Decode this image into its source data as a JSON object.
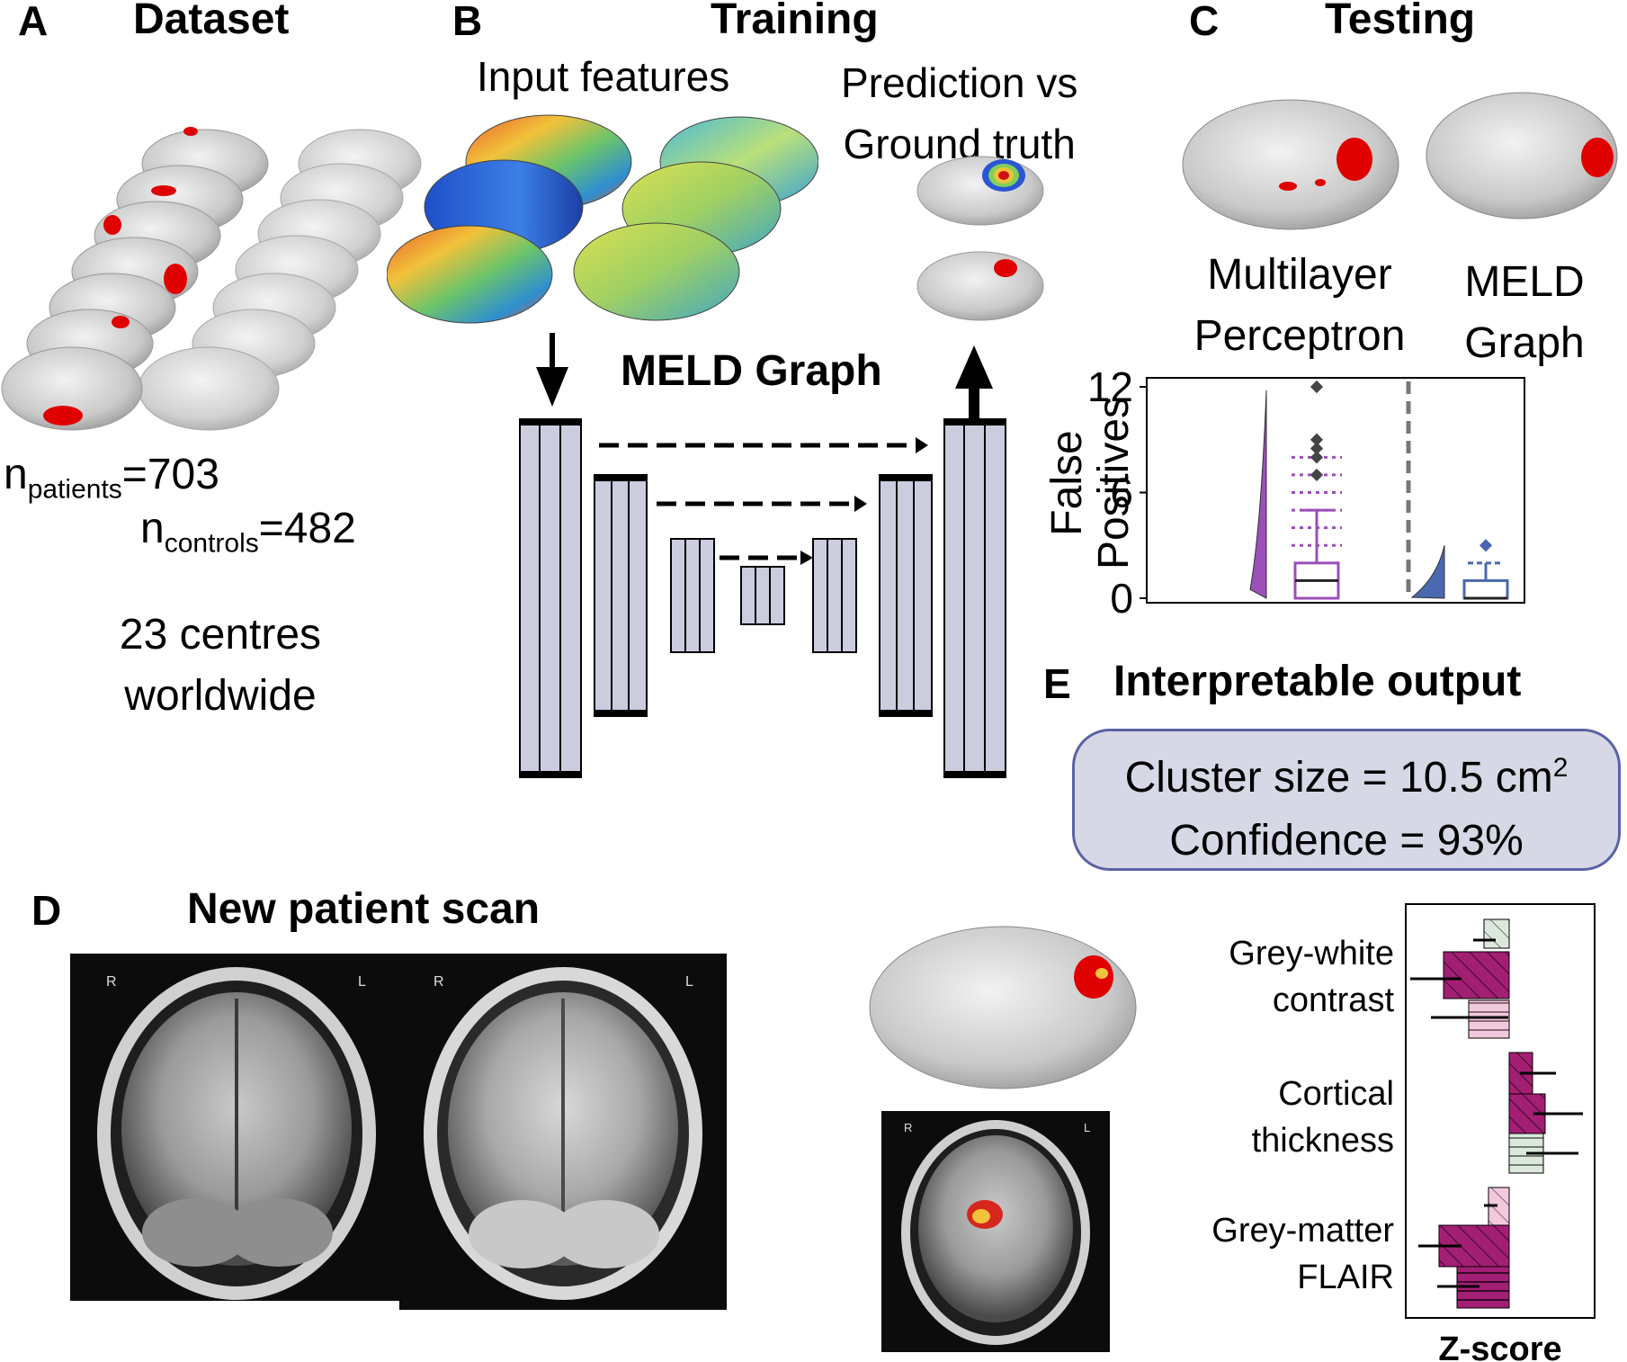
{
  "panels": {
    "A": {
      "letter": "A",
      "title": "Dataset",
      "n_patients_sym": "n",
      "n_patients_sub": "patients",
      "n_patients_val": "=703",
      "n_controls_sym": "n",
      "n_controls_sub": "controls",
      "n_controls_val": "=482",
      "centres_line1": "23 centres",
      "centres_line2": "worldwide"
    },
    "B": {
      "letter": "B",
      "title": "Training",
      "input_features": "Input features",
      "prediction_line1": "Prediction vs",
      "prediction_line2": "Ground truth",
      "model_label": "MELD Graph"
    },
    "C": {
      "letter": "C",
      "title": "Testing",
      "left_method_line1": "Multilayer",
      "left_method_line2": "Perceptron",
      "right_method_line1": "MELD",
      "right_method_line2": "Graph"
    },
    "D": {
      "letter": "D",
      "title": "New patient scan",
      "mri_r": "R",
      "mri_l": "L"
    },
    "E": {
      "letter": "E",
      "title": "Interpretable output",
      "cluster_size_text": "Cluster size = 10.5 cm",
      "cluster_size_sup": "2",
      "confidence_text": "Confidence = 93%"
    }
  },
  "chart_data": [
    {
      "type": "box",
      "ylabel_line1": "False",
      "ylabel_line2": "Positives",
      "yticks": [
        0,
        6,
        12
      ],
      "ylim": [
        0,
        12.5
      ],
      "groups": [
        {
          "name": "Multilayer Perceptron",
          "color": "#9b4fb8",
          "outliers": [
            12,
            9,
            8.5,
            8,
            7
          ]
        },
        {
          "name": "MELD Graph",
          "color": "#4a68b0",
          "outliers": [
            3
          ]
        }
      ]
    },
    {
      "type": "bar",
      "xlabel": "Z-score",
      "categories": [
        "Grey-white contrast",
        "Cortical thickness",
        "Grey-matter FLAIR"
      ],
      "category_lines": [
        [
          "Grey-white",
          "contrast"
        ],
        [
          "Cortical",
          "thickness"
        ],
        [
          "Grey-matter",
          "FLAIR"
        ]
      ],
      "colors": {
        "dark": "#a31f74",
        "light": "#f2c8dc",
        "pale": "#dde8dc"
      }
    }
  ]
}
